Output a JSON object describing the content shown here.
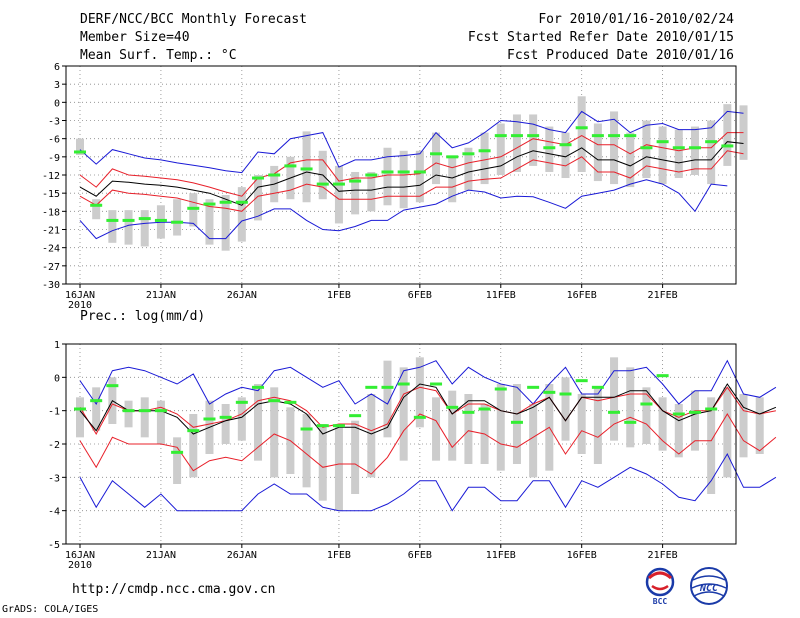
{
  "header": {
    "title": "DERF/NCC/BCC Monthly Forecast",
    "member_size": "Member Size=40",
    "variable": "Mean Surf. Temp.: °C",
    "period": "For 2010/01/16-2010/02/24",
    "started": "Fcst Started Refer Date 2010/01/15",
    "produced": "Fcst Produced Date 2010/01/16"
  },
  "footer": {
    "url": "http://cmdp.ncc.cma.gov.cn",
    "grads": "GrADS: COLA/IGES",
    "logo_bcc": "BCC",
    "logo_ncc": "NCC"
  },
  "colors": {
    "bar": "#cccccc",
    "line_black": "#000000",
    "line_red": "#e8202a",
    "line_blue": "#1a1ad6",
    "green": "#33ee33",
    "grid": "#888888"
  },
  "chart_data": [
    {
      "type": "line",
      "title": "Mean Surf. Temp.: °C",
      "x_tick_labels": [
        "16JAN",
        "21JAN",
        "26JAN",
        "1FEB",
        "6FEB",
        "11FEB",
        "16FEB",
        "21FEB"
      ],
      "x_tick_days": [
        1,
        6,
        11,
        17,
        22,
        27,
        32,
        37
      ],
      "year_label": "2010",
      "days": 40,
      "ylim": [
        -30,
        6
      ],
      "y_ticks": [
        -30,
        -27,
        -24,
        -21,
        -18,
        -15,
        -12,
        -9,
        -6,
        -3,
        0,
        3,
        6
      ],
      "series": [
        {
          "name": "max",
          "color": "blue",
          "values": [
            -7.8,
            -10.2,
            -7.8,
            -8.5,
            -9.2,
            -9.5,
            -10,
            -10.4,
            -10.8,
            -11.3,
            -11.6,
            -8.2,
            -8.5,
            -6,
            -5.5,
            -5,
            -10.7,
            -9.5,
            -9.5,
            -9,
            -8.8,
            -8.5,
            -5,
            -7.5,
            -6.7,
            -5,
            -3,
            -3.2,
            -3.6,
            -4.5,
            -5,
            -1.5,
            -3.2,
            -2.8,
            -5,
            -3.8,
            -3.5,
            -4.5,
            -4.5,
            -4.2,
            -1.5,
            -1.8
          ]
        },
        {
          "name": "upper",
          "color": "red",
          "values": [
            -12,
            -14,
            -11,
            -12,
            -12.2,
            -12.5,
            -12.8,
            -13.3,
            -14,
            -14.8,
            -15.5,
            -12.5,
            -11.8,
            -10,
            -9.5,
            -9.5,
            -13,
            -12.5,
            -12.5,
            -12,
            -12,
            -11.8,
            -10,
            -10.8,
            -10,
            -9.5,
            -9,
            -7.5,
            -6,
            -6.5,
            -7,
            -5.5,
            -7,
            -7,
            -8.5,
            -7,
            -7.5,
            -8,
            -7.5,
            -7.5,
            -5,
            -5
          ]
        },
        {
          "name": "mean",
          "color": "black",
          "values": [
            -14,
            -15.5,
            -13,
            -13.2,
            -13.5,
            -13.7,
            -14,
            -14.5,
            -15,
            -16,
            -17,
            -14,
            -13.5,
            -12.5,
            -11.5,
            -12,
            -14.7,
            -14.5,
            -14.5,
            -14,
            -14,
            -13.7,
            -12,
            -12.5,
            -11.5,
            -11,
            -10.5,
            -9,
            -8,
            -8.5,
            -9,
            -7.5,
            -9.5,
            -9.5,
            -10.5,
            -9,
            -9.5,
            -10,
            -9.5,
            -9.5,
            -6.5,
            -6.8
          ]
        },
        {
          "name": "lower",
          "color": "red",
          "values": [
            -15.5,
            -17,
            -14.5,
            -15,
            -15.2,
            -15.5,
            -15.8,
            -16.5,
            -17.2,
            -17.5,
            -18,
            -15.5,
            -15,
            -14.5,
            -13.5,
            -14,
            -16,
            -16,
            -16,
            -15.5,
            -15.5,
            -15.5,
            -14,
            -14,
            -13,
            -12.7,
            -12.5,
            -11,
            -9.5,
            -10,
            -10.5,
            -9,
            -11.5,
            -11.5,
            -12.5,
            -10.5,
            -11,
            -11.5,
            -11,
            -11,
            -8,
            -8.5
          ]
        },
        {
          "name": "min",
          "color": "blue",
          "values": [
            -19.5,
            -22.5,
            -21.2,
            -20.3,
            -20,
            -19.8,
            -19.8,
            -20,
            -22.5,
            -22.5,
            -19.6,
            -18.8,
            -17.6,
            -17.6,
            -19.5,
            -21,
            -21.2,
            -20.5,
            -19.5,
            -19.5,
            -17.8,
            -17.3,
            -16.8,
            -15.5,
            -14.5,
            -14.8,
            -15.8,
            -15.5,
            -15.6,
            -16.5,
            -17.5,
            -15.5,
            -15,
            -14.5,
            -13.5,
            -12.8,
            -13.5,
            -15,
            -18,
            -13.5,
            -13.8
          ]
        }
      ],
      "bars": [
        {
          "low": -8.7,
          "high": -6.0
        },
        {
          "low": -19.3,
          "high": -16.0
        },
        {
          "low": -23.2,
          "high": -17.8
        },
        {
          "low": -23.5,
          "high": -17.8
        },
        {
          "low": -23.8,
          "high": -17.8
        },
        {
          "low": -22.5,
          "high": -17.0
        },
        {
          "low": -22.0,
          "high": -16.0
        },
        {
          "low": -20.5,
          "high": -15.0
        },
        {
          "low": -23.5,
          "high": -16.0
        },
        {
          "low": -24.5,
          "high": -15.3
        },
        {
          "low": -23.0,
          "high": -14.0
        },
        {
          "low": -19.5,
          "high": -12.0
        },
        {
          "low": -16.5,
          "high": -10.5
        },
        {
          "low": -16.0,
          "high": -9.0
        },
        {
          "low": -16.5,
          "high": -4.8
        },
        {
          "low": -16.0,
          "high": -8.0
        },
        {
          "low": -20.0,
          "high": -10.5
        },
        {
          "low": -18.5,
          "high": -11.5
        },
        {
          "low": -18.0,
          "high": -11.5
        },
        {
          "low": -17.0,
          "high": -7.5
        },
        {
          "low": -17.5,
          "high": -8.0
        },
        {
          "low": -16.5,
          "high": -8.0
        },
        {
          "low": -13.5,
          "high": -5.0
        },
        {
          "low": -16.5,
          "high": -9.0
        },
        {
          "low": -14.5,
          "high": -7.5
        },
        {
          "low": -13.5,
          "high": -5.0
        },
        {
          "low": -12.0,
          "high": -3.5
        },
        {
          "low": -11.5,
          "high": -2.0
        },
        {
          "low": -10.5,
          "high": -2.0
        },
        {
          "low": -11.5,
          "high": -4.0
        },
        {
          "low": -12.5,
          "high": -5.0
        },
        {
          "low": -11.5,
          "high": 1.0
        },
        {
          "low": -13.0,
          "high": -3.5
        },
        {
          "low": -13.5,
          "high": -1.5
        },
        {
          "low": -14.0,
          "high": -5.0
        },
        {
          "low": -12.5,
          "high": -3.0
        },
        {
          "low": -13.5,
          "high": -4.0
        },
        {
          "low": -12.5,
          "high": -4.5
        },
        {
          "low": -12.0,
          "high": -4.0
        },
        {
          "low": -13.5,
          "high": -3.0
        },
        {
          "low": -10.5,
          "high": -0.3
        },
        {
          "low": -9.5,
          "high": -0.5
        }
      ],
      "observed": [
        -8.2,
        -17,
        -19.5,
        -19.5,
        -19.2,
        -19.5,
        -19.8,
        -17.5,
        -16.8,
        -16.5,
        -16.5,
        -12.5,
        -12,
        -10.5,
        -11,
        -13.5,
        -13.5,
        -13,
        -12,
        -11.5,
        -11.5,
        -11.5,
        -8.5,
        -9,
        -8.5,
        -8,
        -5.5,
        -5.5,
        -5.5,
        -7.5,
        -7,
        -4.2,
        -5.5,
        -5.5,
        -5.5,
        -7.5,
        -6.5,
        -7.5,
        -7.5,
        -6.5,
        -7.2,
        -7.2,
        -4.3
      ]
    },
    {
      "type": "line",
      "title": "Prec.: log(mm/d)",
      "x_tick_labels": [
        "16JAN",
        "21JAN",
        "26JAN",
        "1FEB",
        "6FEB",
        "11FEB",
        "16FEB",
        "21FEB"
      ],
      "x_tick_days": [
        1,
        6,
        11,
        17,
        22,
        27,
        32,
        37
      ],
      "year_label": "2010",
      "days": 40,
      "ylim": [
        -5,
        1
      ],
      "y_ticks": [
        -5,
        -4,
        -3,
        -2,
        -1,
        0,
        1
      ],
      "series": [
        {
          "name": "max",
          "color": "blue",
          "values": [
            -0.1,
            -0.8,
            0.2,
            0.3,
            0.2,
            0,
            -0.2,
            0.1,
            -0.8,
            -0.5,
            -0.3,
            -0.4,
            0.2,
            0.3,
            0,
            -0.3,
            -0.1,
            -0.8,
            -0.5,
            -0.8,
            0.2,
            0.3,
            0.5,
            -0.2,
            0.3,
            0,
            -0.2,
            -0.3,
            -0.8,
            -0.2,
            0.3,
            -0.5,
            -0.5,
            0.2,
            0.2,
            0.3,
            -0.2,
            -0.8,
            -0.4,
            -0.4,
            0.5,
            -0.5,
            -0.6,
            -0.3
          ]
        },
        {
          "name": "upper",
          "color": "red",
          "values": [
            -0.9,
            -1.7,
            -0.8,
            -1,
            -1,
            -0.9,
            -1.1,
            -1.5,
            -1.4,
            -1.3,
            -1.1,
            -0.7,
            -0.6,
            -0.7,
            -1,
            -1.5,
            -1.4,
            -1.4,
            -1.6,
            -1.4,
            -0.5,
            -0.3,
            -0.4,
            -1.1,
            -0.8,
            -0.8,
            -1,
            -1.1,
            -0.8,
            -0.6,
            -1.3,
            -0.6,
            -0.7,
            -0.6,
            -0.5,
            -0.5,
            -1,
            -1.2,
            -1,
            -1,
            -0.3,
            -1,
            -1.1,
            -1
          ]
        },
        {
          "name": "mean",
          "color": "black",
          "values": [
            -1,
            -1.6,
            -0.7,
            -1,
            -1,
            -1,
            -1.2,
            -1.7,
            -1.5,
            -1.3,
            -1.2,
            -0.8,
            -0.7,
            -0.8,
            -1.1,
            -1.7,
            -1.5,
            -1.5,
            -1.7,
            -1.5,
            -0.6,
            -0.2,
            -0.3,
            -1.1,
            -0.7,
            -0.7,
            -1,
            -1.1,
            -0.9,
            -0.6,
            -1.3,
            -0.6,
            -0.6,
            -0.6,
            -0.4,
            -0.4,
            -1,
            -1.3,
            -1.1,
            -1,
            -0.2,
            -0.9,
            -1.1,
            -0.9
          ]
        },
        {
          "name": "lower",
          "color": "red",
          "values": [
            -1.9,
            -2.7,
            -1.8,
            -2,
            -2,
            -2,
            -2.1,
            -2.8,
            -2.5,
            -2.4,
            -2.5,
            -2.1,
            -1.7,
            -1.9,
            -2.3,
            -2.7,
            -2.6,
            -2.6,
            -2.9,
            -2.4,
            -1.6,
            -1.1,
            -1.3,
            -2.1,
            -1.6,
            -1.7,
            -2,
            -2.1,
            -1.8,
            -1.5,
            -2.3,
            -1.6,
            -1.8,
            -1.4,
            -1.2,
            -1.4,
            -1.9,
            -2.3,
            -1.9,
            -1.9,
            -1.1,
            -1.9,
            -2.2,
            -1.8
          ]
        },
        {
          "name": "min",
          "color": "blue",
          "values": [
            -3,
            -3.9,
            -3.1,
            -3.5,
            -3.9,
            -3.5,
            -4,
            -4,
            -4,
            -4,
            -4,
            -3.5,
            -3.2,
            -3.5,
            -3.5,
            -3.9,
            -4,
            -4,
            -4,
            -3.8,
            -3.5,
            -3.1,
            -3.1,
            -4,
            -3.3,
            -3.3,
            -3.7,
            -3.7,
            -3.1,
            -3.1,
            -3.9,
            -3.1,
            -3.3,
            -3,
            -2.7,
            -2.9,
            -3.2,
            -3.6,
            -3.7,
            -3.1,
            -2.3,
            -3.3,
            -3.3,
            -3
          ]
        },
        {
          "name": "observed",
          "color": "green",
          "values": [
            -0.95,
            -0.7,
            -0.25,
            -1,
            -1,
            -1,
            -2.25,
            -1.6,
            -1.25,
            -1.2,
            -0.75,
            -0.3,
            -0.7,
            -0.75,
            -1.55,
            -1.45,
            -1.45,
            -1.15,
            -0.3,
            -0.3,
            -0.2,
            -1.2,
            -0.2,
            -0.9,
            -1.05,
            -0.95,
            -0.35,
            -1.35,
            -0.3,
            -0.45,
            -0.5,
            -0.1,
            -0.3,
            -1.05,
            -1.35,
            -0.8,
            0.05,
            -1.1,
            -1.05,
            -0.95
          ]
        }
      ],
      "bars": [
        {
          "low": -1.8,
          "high": -0.6
        },
        {
          "low": -1.6,
          "high": -0.3
        },
        {
          "low": -1.4,
          "high": 0.0
        },
        {
          "low": -1.5,
          "high": -0.7
        },
        {
          "low": -1.8,
          "high": -0.6
        },
        {
          "low": -2.0,
          "high": -0.7
        },
        {
          "low": -3.2,
          "high": -1.8
        },
        {
          "low": -3.0,
          "high": -1.1
        },
        {
          "low": -2.3,
          "high": -0.7
        },
        {
          "low": -2.0,
          "high": -0.8
        },
        {
          "low": -1.9,
          "high": -0.6
        },
        {
          "low": -2.5,
          "high": -0.2
        },
        {
          "low": -3.0,
          "high": -0.3
        },
        {
          "low": -2.9,
          "high": -0.9
        },
        {
          "low": -3.3,
          "high": -1.1
        },
        {
          "low": -3.7,
          "high": -1.4
        },
        {
          "low": -4.0,
          "high": -1.5
        },
        {
          "low": -3.5,
          "high": -1.3
        },
        {
          "low": -3.0,
          "high": -0.5
        },
        {
          "low": -1.8,
          "high": 0.5
        },
        {
          "low": -2.5,
          "high": 0.3
        },
        {
          "low": -1.5,
          "high": 0.6
        },
        {
          "low": -2.5,
          "high": -0.6
        },
        {
          "low": -2.5,
          "high": -0.4
        },
        {
          "low": -2.6,
          "high": -0.5
        },
        {
          "low": -2.6,
          "high": -0.8
        },
        {
          "low": -2.8,
          "high": -0.2
        },
        {
          "low": -2.6,
          "high": -0.2
        },
        {
          "low": -3.0,
          "high": -0.8
        },
        {
          "low": -2.8,
          "high": -0.2
        },
        {
          "low": -1.9,
          "high": 0.0
        },
        {
          "low": -2.3,
          "high": -0.5
        },
        {
          "low": -2.6,
          "high": -0.3
        },
        {
          "low": -1.9,
          "high": 0.6
        },
        {
          "low": -2.1,
          "high": 0.3
        },
        {
          "low": -2.0,
          "high": -0.3
        },
        {
          "low": -2.2,
          "high": -0.6
        },
        {
          "low": -2.4,
          "high": -0.8
        },
        {
          "low": -2.2,
          "high": -0.4
        },
        {
          "low": -3.5,
          "high": -0.6
        },
        {
          "low": -3.0,
          "high": -0.3
        },
        {
          "low": -2.4,
          "high": -0.5
        },
        {
          "low": -2.3,
          "high": -0.6
        }
      ],
      "observed": []
    }
  ]
}
